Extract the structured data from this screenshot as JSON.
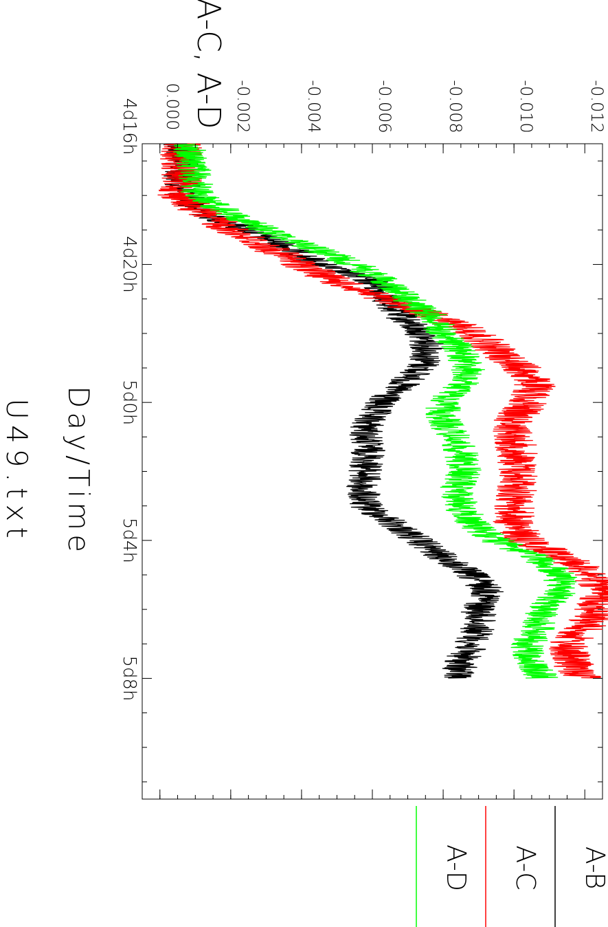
{
  "chart_data": {
    "type": "line",
    "title": "A-B,  A-C,  A-D",
    "xlabel": "Day/Time",
    "subtitle": "U49.txt",
    "ylim": [
      0.0005,
      -0.0125
    ],
    "ytick_values": [
      0.0,
      -0.002,
      -0.004,
      -0.006,
      -0.008,
      -0.01,
      -0.012
    ],
    "ytick_labels": [
      "0.000",
      "-0.002",
      "-0.004",
      "-0.006",
      "-0.008",
      "-0.010",
      "-0.012"
    ],
    "xlim_hours": [
      112.5,
      131.5
    ],
    "xtick_labels": [
      "4d16h",
      "4d20h",
      "5d0h",
      "5d4h",
      "5d8h"
    ],
    "xtick_hours": [
      112,
      116,
      120,
      124,
      128
    ],
    "legend_position": "bottom",
    "grid": false,
    "series": [
      {
        "name": "A-B",
        "color": "#000000",
        "noise": 0.0005,
        "points": [
          [
            112.5,
            -0.0006
          ],
          [
            113.5,
            -0.0006
          ],
          [
            114.0,
            -0.0007
          ],
          [
            114.5,
            -0.0012
          ],
          [
            115.0,
            -0.0025
          ],
          [
            115.5,
            -0.0036
          ],
          [
            116.0,
            -0.0045
          ],
          [
            116.5,
            -0.006
          ],
          [
            117.0,
            -0.0064
          ],
          [
            117.5,
            -0.0068
          ],
          [
            118.0,
            -0.0074
          ],
          [
            118.5,
            -0.0076
          ],
          [
            119.0,
            -0.0074
          ],
          [
            119.5,
            -0.0068
          ],
          [
            120.0,
            -0.0062
          ],
          [
            120.5,
            -0.0059
          ],
          [
            121.0,
            -0.0058
          ],
          [
            121.5,
            -0.0059
          ],
          [
            122.0,
            -0.0058
          ],
          [
            122.5,
            -0.0057
          ],
          [
            123.0,
            -0.0058
          ],
          [
            123.5,
            -0.0066
          ],
          [
            124.0,
            -0.0073
          ],
          [
            124.5,
            -0.008
          ],
          [
            125.0,
            -0.0088
          ],
          [
            125.5,
            -0.0093
          ],
          [
            126.0,
            -0.009
          ],
          [
            126.5,
            -0.009
          ],
          [
            127.0,
            -0.0088
          ],
          [
            127.5,
            -0.0085
          ],
          [
            128.0,
            -0.0084
          ]
        ]
      },
      {
        "name": "A-C",
        "color": "#ff0000",
        "noise": 0.0006,
        "points": [
          [
            112.5,
            -0.0006
          ],
          [
            113.5,
            -0.0006
          ],
          [
            114.0,
            -0.0005
          ],
          [
            114.5,
            -0.0012
          ],
          [
            115.0,
            -0.002
          ],
          [
            115.5,
            -0.003
          ],
          [
            116.0,
            -0.004
          ],
          [
            116.5,
            -0.005
          ],
          [
            117.0,
            -0.0063
          ],
          [
            117.5,
            -0.0078
          ],
          [
            118.0,
            -0.0089
          ],
          [
            118.5,
            -0.0095
          ],
          [
            119.0,
            -0.0102
          ],
          [
            119.5,
            -0.0106
          ],
          [
            120.0,
            -0.0104
          ],
          [
            120.5,
            -0.01
          ],
          [
            121.0,
            -0.01
          ],
          [
            121.5,
            -0.0101
          ],
          [
            122.0,
            -0.0101
          ],
          [
            122.5,
            -0.0101
          ],
          [
            123.0,
            -0.01
          ],
          [
            123.5,
            -0.01
          ],
          [
            124.0,
            -0.0103
          ],
          [
            124.5,
            -0.0115
          ],
          [
            125.0,
            -0.0122
          ],
          [
            125.5,
            -0.0125
          ],
          [
            126.0,
            -0.0123
          ],
          [
            126.5,
            -0.012
          ],
          [
            127.0,
            -0.0115
          ],
          [
            127.5,
            -0.0116
          ],
          [
            128.0,
            -0.012
          ]
        ]
      },
      {
        "name": "A-D",
        "color": "#00ff00",
        "noise": 0.0005,
        "points": [
          [
            112.5,
            -0.0008
          ],
          [
            113.5,
            -0.001
          ],
          [
            114.0,
            -0.0011
          ],
          [
            114.5,
            -0.0019
          ],
          [
            115.0,
            -0.003
          ],
          [
            115.5,
            -0.0043
          ],
          [
            116.0,
            -0.0055
          ],
          [
            116.5,
            -0.0064
          ],
          [
            117.0,
            -0.007
          ],
          [
            117.5,
            -0.0077
          ],
          [
            118.0,
            -0.008
          ],
          [
            118.5,
            -0.0085
          ],
          [
            119.0,
            -0.0087
          ],
          [
            119.5,
            -0.0085
          ],
          [
            120.0,
            -0.008
          ],
          [
            120.5,
            -0.008
          ],
          [
            121.0,
            -0.0083
          ],
          [
            121.5,
            -0.0085
          ],
          [
            122.0,
            -0.0086
          ],
          [
            122.5,
            -0.0084
          ],
          [
            123.0,
            -0.0085
          ],
          [
            123.5,
            -0.0088
          ],
          [
            124.0,
            -0.0095
          ],
          [
            124.5,
            -0.0106
          ],
          [
            125.0,
            -0.0113
          ],
          [
            125.5,
            -0.0113
          ],
          [
            126.0,
            -0.0108
          ],
          [
            126.5,
            -0.0107
          ],
          [
            127.0,
            -0.0104
          ],
          [
            127.5,
            -0.0104
          ],
          [
            128.0,
            -0.0108
          ]
        ]
      }
    ]
  }
}
